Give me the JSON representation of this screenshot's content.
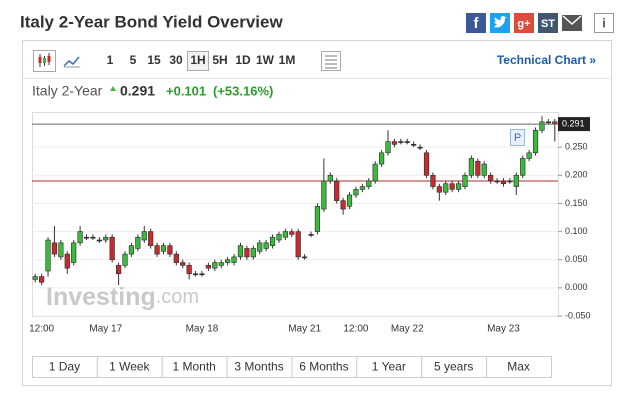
{
  "header": {
    "title": "Italy 2-Year Bond Yield Overview",
    "share": [
      "f",
      "g+",
      "ST",
      "i"
    ]
  },
  "toolbar": {
    "periods": [
      "1",
      "5",
      "15",
      "30",
      "1H",
      "5H",
      "1D",
      "1W",
      "1M"
    ],
    "selected_period": "1H",
    "link": "Technical Chart »"
  },
  "quote": {
    "name": "Italy 2-Year",
    "price": 0.291,
    "change": "+0.101",
    "change_percent": "(+53.16%)"
  },
  "chart_data": {
    "type": "candlestick",
    "up_color": "#3cb93c",
    "down_color": "#c62b2f",
    "watermark": {
      "brand": "Investing",
      "suffix": ".com"
    },
    "marker": "P",
    "categories": [
      null,
      "12:00",
      null,
      null,
      null,
      null,
      null,
      null,
      null,
      null,
      null,
      "May 17",
      null,
      null,
      null,
      null,
      null,
      null,
      null,
      null,
      null,
      null,
      null,
      null,
      null,
      null,
      "May 18",
      null,
      null,
      null,
      null,
      null,
      null,
      null,
      null,
      null,
      null,
      null,
      null,
      null,
      null,
      null,
      "May 21",
      null,
      null,
      null,
      null,
      null,
      null,
      null,
      "12:00",
      null,
      null,
      null,
      null,
      null,
      null,
      null,
      "May 22",
      null,
      null,
      null,
      null,
      null,
      null,
      null,
      null,
      null,
      null,
      null,
      null,
      null,
      null,
      "May 23",
      null,
      null,
      null,
      null,
      null,
      null,
      null,
      null
    ],
    "open": [
      0.015,
      0.02,
      0.03,
      0.08,
      0.055,
      0.06,
      0.045,
      0.08,
      0.09,
      0.09,
      0.085,
      0.085,
      0.09,
      0.04,
      0.04,
      0.06,
      0.07,
      0.085,
      0.1,
      0.075,
      0.065,
      0.075,
      0.06,
      0.045,
      0.04,
      0.025,
      0.025,
      0.04,
      0.035,
      0.04,
      0.045,
      0.045,
      0.055,
      0.07,
      0.055,
      0.065,
      0.07,
      0.075,
      0.085,
      0.09,
      0.1,
      0.1,
      0.055,
      0.095,
      0.1,
      0.14,
      0.19,
      0.19,
      0.155,
      0.145,
      0.165,
      0.175,
      0.18,
      0.19,
      0.22,
      0.24,
      0.26,
      0.26,
      0.26,
      0.255,
      0.25,
      0.24,
      0.2,
      0.18,
      0.17,
      0.185,
      0.175,
      0.18,
      0.2,
      0.225,
      0.2,
      0.2,
      0.19,
      0.19,
      0.19,
      0.18,
      0.2,
      0.23,
      0.24,
      0.28,
      0.295,
      0.295
    ],
    "high": [
      0.025,
      0.025,
      0.09,
      0.11,
      0.085,
      0.065,
      0.085,
      0.11,
      0.095,
      0.095,
      0.09,
      0.095,
      0.095,
      0.045,
      0.065,
      0.08,
      0.095,
      0.11,
      0.105,
      0.08,
      0.08,
      0.08,
      0.065,
      0.05,
      0.045,
      0.03,
      0.03,
      0.045,
      0.05,
      0.05,
      0.055,
      0.06,
      0.08,
      0.075,
      0.075,
      0.085,
      0.085,
      0.095,
      0.1,
      0.105,
      0.105,
      0.105,
      0.06,
      0.1,
      0.15,
      0.23,
      0.205,
      0.195,
      0.16,
      0.17,
      0.18,
      0.185,
      0.195,
      0.225,
      0.245,
      0.28,
      0.265,
      0.265,
      0.265,
      0.26,
      0.255,
      0.245,
      0.205,
      0.185,
      0.19,
      0.19,
      0.19,
      0.205,
      0.235,
      0.23,
      0.225,
      0.205,
      0.195,
      0.195,
      0.195,
      0.205,
      0.235,
      0.245,
      0.285,
      0.305,
      0.3,
      0.3
    ],
    "low": [
      0.01,
      0.005,
      0.02,
      0.055,
      0.05,
      0.025,
      0.04,
      0.075,
      0.085,
      0.085,
      0.08,
      0.08,
      0.045,
      0.005,
      0.035,
      0.055,
      0.065,
      0.08,
      0.07,
      0.055,
      0.06,
      0.055,
      0.04,
      0.035,
      0.015,
      0.02,
      0.02,
      0.03,
      0.03,
      0.035,
      0.04,
      0.04,
      0.05,
      0.05,
      0.05,
      0.06,
      0.065,
      0.07,
      0.08,
      0.085,
      0.09,
      0.05,
      0.05,
      0.09,
      0.095,
      0.135,
      0.185,
      0.15,
      0.13,
      0.14,
      0.16,
      0.17,
      0.175,
      0.185,
      0.215,
      0.235,
      0.25,
      0.255,
      0.255,
      0.25,
      0.245,
      0.195,
      0.175,
      0.155,
      0.165,
      0.17,
      0.17,
      0.175,
      0.195,
      0.195,
      0.195,
      0.185,
      0.185,
      0.18,
      0.185,
      0.165,
      0.195,
      0.225,
      0.235,
      0.275,
      0.29,
      0.26
    ],
    "close": [
      0.02,
      0.01,
      0.085,
      0.06,
      0.08,
      0.035,
      0.08,
      0.1,
      0.09,
      0.09,
      0.085,
      0.09,
      0.05,
      0.025,
      0.06,
      0.075,
      0.09,
      0.1,
      0.075,
      0.06,
      0.075,
      0.06,
      0.045,
      0.04,
      0.025,
      0.025,
      0.025,
      0.035,
      0.045,
      0.045,
      0.05,
      0.055,
      0.075,
      0.055,
      0.07,
      0.08,
      0.08,
      0.09,
      0.095,
      0.1,
      0.095,
      0.055,
      0.055,
      0.095,
      0.145,
      0.19,
      0.2,
      0.155,
      0.14,
      0.165,
      0.175,
      0.18,
      0.19,
      0.22,
      0.24,
      0.26,
      0.255,
      0.26,
      0.26,
      0.255,
      0.25,
      0.2,
      0.18,
      0.17,
      0.185,
      0.175,
      0.185,
      0.2,
      0.23,
      0.2,
      0.22,
      0.19,
      0.19,
      0.185,
      0.19,
      0.2,
      0.23,
      0.24,
      0.28,
      0.295,
      0.295,
      0.291
    ],
    "previous_close": 0.19,
    "ylim": [
      -0.05,
      0.3125
    ],
    "yticks": [
      {
        "value": -0.05,
        "label": "-0.050"
      },
      {
        "value": 0,
        "label": "0.000"
      },
      {
        "value": 0.05,
        "label": "0.050"
      },
      {
        "value": 0.1,
        "label": "0.100"
      },
      {
        "value": 0.15,
        "label": "0.150"
      },
      {
        "value": 0.2,
        "label": "0.200"
      },
      {
        "value": 0.25,
        "label": "0.250"
      }
    ],
    "grid": true
  },
  "ranges": [
    "1 Day",
    "1 Week",
    "1 Month",
    "3 Months",
    "6 Months",
    "1 Year",
    "5 years",
    "Max"
  ]
}
